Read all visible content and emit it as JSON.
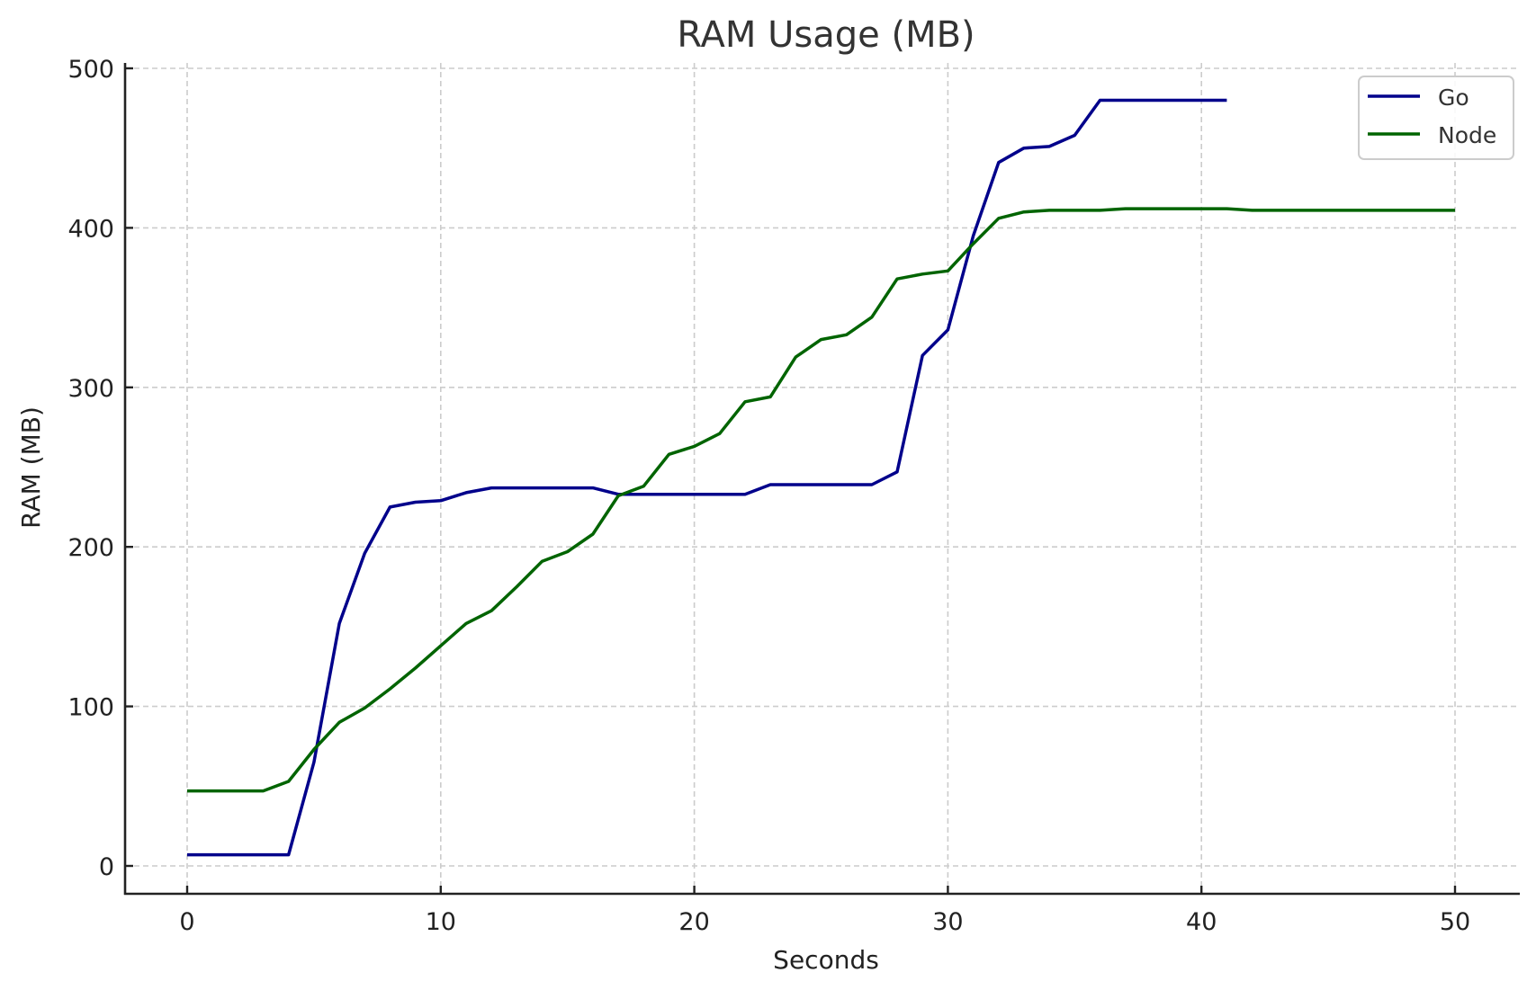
{
  "chart_data": {
    "type": "line",
    "title": "RAM Usage (MB)",
    "xlabel": "Seconds",
    "ylabel": "RAM (MB)",
    "xlim": [
      -2.5,
      52.5
    ],
    "ylim": [
      -17,
      505
    ],
    "xticks": [
      0,
      10,
      20,
      30,
      40,
      50
    ],
    "yticks": [
      0,
      100,
      200,
      300,
      400,
      500
    ],
    "grid": true,
    "legend_position": "upper right",
    "series": [
      {
        "name": "Go",
        "color": "#00008b",
        "x": [
          0,
          1,
          2,
          3,
          4,
          5,
          6,
          7,
          8,
          9,
          10,
          11,
          12,
          13,
          14,
          15,
          16,
          17,
          18,
          19,
          20,
          21,
          22,
          23,
          24,
          25,
          26,
          27,
          28,
          29,
          30,
          31,
          32,
          33,
          34,
          35,
          36,
          37,
          38,
          39,
          40,
          41
        ],
        "values": [
          7,
          7,
          7,
          7,
          7,
          65,
          152,
          196,
          225,
          228,
          229,
          234,
          237,
          237,
          237,
          237,
          237,
          233,
          233,
          233,
          233,
          233,
          233,
          239,
          239,
          239,
          239,
          239,
          247,
          320,
          336,
          395,
          441,
          450,
          451,
          458,
          480,
          480,
          480,
          480,
          480,
          480
        ]
      },
      {
        "name": "Node",
        "color": "#006400",
        "x": [
          0,
          1,
          2,
          3,
          4,
          5,
          6,
          7,
          8,
          9,
          10,
          11,
          12,
          13,
          14,
          15,
          16,
          17,
          18,
          19,
          20,
          21,
          22,
          23,
          24,
          25,
          26,
          27,
          28,
          29,
          30,
          31,
          32,
          33,
          34,
          35,
          36,
          37,
          38,
          39,
          40,
          41,
          42,
          43,
          44,
          45,
          46,
          47,
          48,
          49,
          50
        ],
        "values": [
          47,
          47,
          47,
          47,
          53,
          73,
          90,
          99,
          111,
          124,
          138,
          152,
          160,
          175,
          191,
          197,
          208,
          232,
          238,
          258,
          263,
          271,
          291,
          294,
          319,
          330,
          333,
          344,
          368,
          371,
          373,
          390,
          406,
          410,
          411,
          411,
          411,
          412,
          412,
          412,
          412,
          412,
          411,
          411,
          411,
          411,
          411,
          411,
          411,
          411,
          411
        ]
      }
    ]
  },
  "legend": {
    "items": [
      {
        "label": "Go",
        "color": "#00008b"
      },
      {
        "label": "Node",
        "color": "#006400"
      }
    ]
  }
}
